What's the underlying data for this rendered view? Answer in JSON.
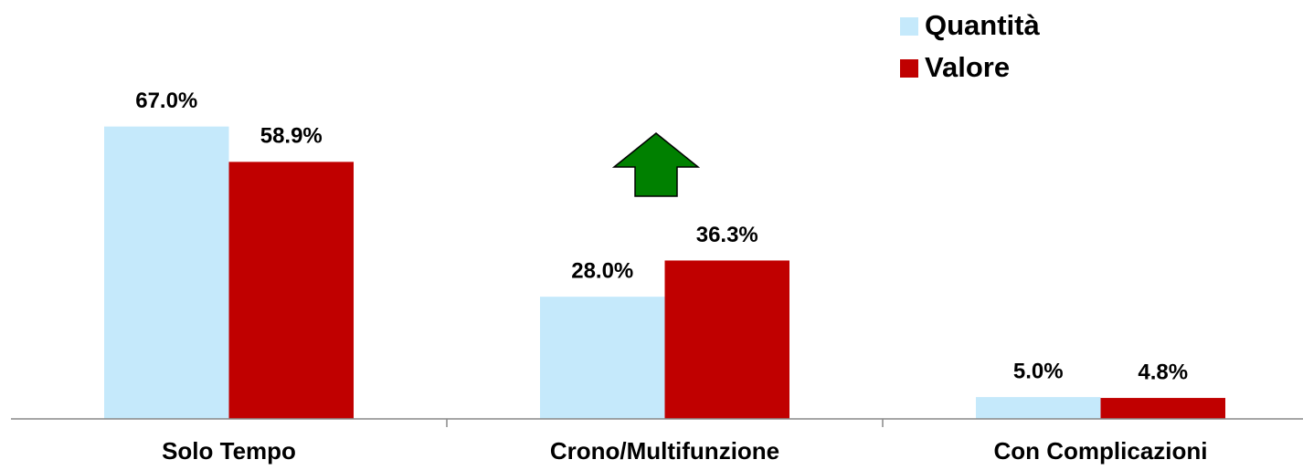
{
  "chart_data": {
    "type": "bar",
    "categories": [
      "Solo Tempo",
      "Crono/Multifunzione",
      "Con Complicazioni"
    ],
    "series": [
      {
        "name": "Quantità",
        "color": "#c5e9fb",
        "values": [
          67.0,
          28.0,
          5.0
        ],
        "value_labels": [
          "67.0%",
          "28.0%",
          "5.0%"
        ]
      },
      {
        "name": "Valore",
        "color": "#c00000",
        "values": [
          58.9,
          36.3,
          4.8
        ],
        "value_labels": [
          "58.9%",
          "36.3%",
          "4.8%"
        ]
      }
    ],
    "ylim": [
      0,
      96
    ],
    "legend": "top-right"
  }
}
